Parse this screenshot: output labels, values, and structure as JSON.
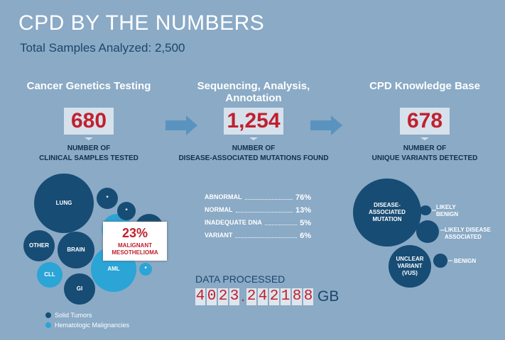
{
  "header": {
    "title": "CPD BY THE NUMBERS",
    "subtitle": "Total Samples Analyzed: 2,500"
  },
  "columns": [
    {
      "heading": "Cancer Genetics Testing",
      "number": "680",
      "caption": [
        "NUMBER OF",
        "CLINICAL SAMPLES TESTED"
      ]
    },
    {
      "heading": "Sequencing, Analysis, Annotation",
      "number": "1,254",
      "caption": [
        "NUMBER OF",
        "DISEASE-ASSOCIATED MUTATIONS FOUND"
      ]
    },
    {
      "heading": "CPD Knowledge Base",
      "number": "678",
      "caption": [
        "NUMBER OF",
        "UNIQUE VARIANTS DETECTED"
      ]
    }
  ],
  "sample_bubbles": [
    "LUNG",
    "*",
    "*",
    "OTHER",
    "BRAIN",
    "AML",
    "CLL",
    "GI",
    "*"
  ],
  "callout": {
    "value": "23%",
    "label": "MALIGNANT MESOTHELIOMA"
  },
  "legend": [
    "Solid Tumors",
    "Hematologic Malignancies"
  ],
  "stats": [
    {
      "label": "ABNORMAL",
      "value": "76%"
    },
    {
      "label": "NORMAL",
      "value": "13%"
    },
    {
      "label": "INADEQUATE DNA",
      "value": "5%"
    },
    {
      "label": "VARIANT",
      "value": "6%"
    }
  ],
  "data_processed": {
    "label": "DATA PROCESSED",
    "digits": [
      "4",
      "0",
      "2",
      "3",
      ".",
      "2",
      "4",
      "2",
      "1",
      "8",
      "8"
    ],
    "unit": "GB"
  },
  "variant_bubbles": [
    "DISEASE-ASSOCIATED MUTATION",
    "UNCLEAR VARIANT (VUS)",
    "LIKELY BENIGN",
    "LIKELY DISEASE ASSOCIATED",
    "BENIGN"
  ]
}
